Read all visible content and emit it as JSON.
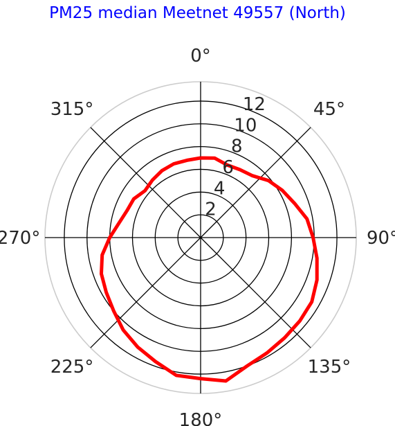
{
  "chart_data": {
    "type": "polar-line",
    "title": "PM25 median Meetnet 49557 (North)",
    "theta_direction": "clockwise",
    "theta_zero": "north",
    "angle_ticks": [
      {
        "deg": 0,
        "label": "0°"
      },
      {
        "deg": 45,
        "label": "45°"
      },
      {
        "deg": 90,
        "label": "90°"
      },
      {
        "deg": 135,
        "label": "135°"
      },
      {
        "deg": 180,
        "label": "180°"
      },
      {
        "deg": 225,
        "label": "225°"
      },
      {
        "deg": 270,
        "label": "270°"
      },
      {
        "deg": 315,
        "label": "315°"
      }
    ],
    "radial_ticks": [
      {
        "value": 2,
        "label": "2"
      },
      {
        "value": 4,
        "label": "4"
      },
      {
        "value": 6,
        "label": "6"
      },
      {
        "value": 8,
        "label": "8"
      },
      {
        "value": 10,
        "label": "10"
      },
      {
        "value": 12,
        "label": "12"
      }
    ],
    "rlim": [
      0,
      13.7
    ],
    "series": [
      {
        "name": "PM25 median",
        "color": "#ff0000",
        "points": [
          {
            "theta": 0,
            "r": 7.0
          },
          {
            "theta": 10,
            "r": 7.1
          },
          {
            "theta": 20,
            "r": 6.8
          },
          {
            "theta": 30,
            "r": 6.9
          },
          {
            "theta": 40,
            "r": 7.1
          },
          {
            "theta": 50,
            "r": 7.8
          },
          {
            "theta": 60,
            "r": 8.3
          },
          {
            "theta": 70,
            "r": 8.8
          },
          {
            "theta": 80,
            "r": 9.5
          },
          {
            "theta": 90,
            "r": 9.9
          },
          {
            "theta": 100,
            "r": 10.4
          },
          {
            "theta": 110,
            "r": 10.9
          },
          {
            "theta": 120,
            "r": 11.3
          },
          {
            "theta": 130,
            "r": 11.4
          },
          {
            "theta": 140,
            "r": 11.5
          },
          {
            "theta": 150,
            "r": 11.7
          },
          {
            "theta": 160,
            "r": 12.0
          },
          {
            "theta": 170,
            "r": 12.8
          },
          {
            "theta": 180,
            "r": 12.4
          },
          {
            "theta": 190,
            "r": 12.3
          },
          {
            "theta": 200,
            "r": 11.6
          },
          {
            "theta": 210,
            "r": 11.1
          },
          {
            "theta": 220,
            "r": 10.6
          },
          {
            "theta": 230,
            "r": 10.0
          },
          {
            "theta": 240,
            "r": 9.6
          },
          {
            "theta": 250,
            "r": 9.3
          },
          {
            "theta": 260,
            "r": 8.8
          },
          {
            "theta": 270,
            "r": 8.0
          },
          {
            "theta": 280,
            "r": 7.3
          },
          {
            "theta": 290,
            "r": 6.9
          },
          {
            "theta": 300,
            "r": 6.8
          },
          {
            "theta": 310,
            "r": 6.4
          },
          {
            "theta": 320,
            "r": 6.6
          },
          {
            "theta": 330,
            "r": 6.8
          },
          {
            "theta": 340,
            "r": 6.9
          },
          {
            "theta": 350,
            "r": 6.9
          }
        ]
      }
    ]
  }
}
